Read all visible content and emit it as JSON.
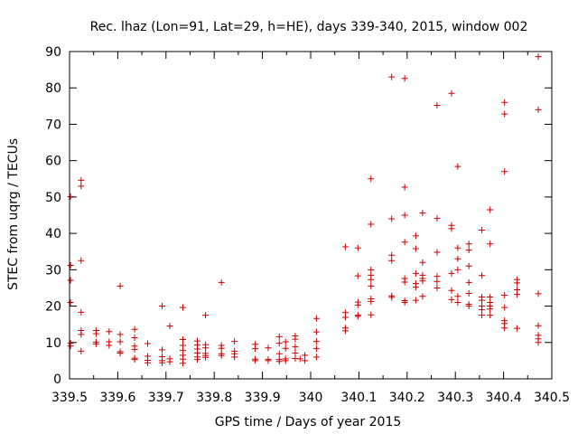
{
  "chart_data": {
    "type": "scatter",
    "title": "Rec. lhaz (Lon=91, Lat=29, h=HE), days 339-340, 2015, window 002",
    "xlabel": "GPS time / Days of year 2015",
    "ylabel": "STEC from uqrg / TECUs",
    "xlim": [
      339.5,
      340.5
    ],
    "ylim": [
      0,
      90
    ],
    "xticks": [
      "339.5",
      "339.6",
      "339.7",
      "339.8",
      "339.9",
      "340",
      "340.1",
      "340.2",
      "340.3",
      "340.4",
      "340.5"
    ],
    "yticks": [
      "0",
      "10",
      "20",
      "30",
      "40",
      "50",
      "60",
      "70",
      "80",
      "90"
    ],
    "marker": "plus",
    "color": "#cc0000",
    "grid": false,
    "legend": "none",
    "points": [
      [
        339.502,
        50.1
      ],
      [
        339.502,
        31.2
      ],
      [
        339.502,
        27.1
      ],
      [
        339.502,
        21.0
      ],
      [
        339.502,
        9.8
      ],
      [
        339.502,
        9.0
      ],
      [
        339.524,
        54.6
      ],
      [
        339.524,
        53.0
      ],
      [
        339.524,
        32.5
      ],
      [
        339.524,
        18.3
      ],
      [
        339.524,
        13.3
      ],
      [
        339.524,
        12.2
      ],
      [
        339.524,
        7.6
      ],
      [
        339.555,
        13.3
      ],
      [
        339.555,
        12.4
      ],
      [
        339.555,
        10.1
      ],
      [
        339.555,
        9.6
      ],
      [
        339.582,
        13.0
      ],
      [
        339.582,
        10.2
      ],
      [
        339.582,
        9.2
      ],
      [
        339.605,
        25.5
      ],
      [
        339.605,
        12.2
      ],
      [
        339.605,
        10.2
      ],
      [
        339.605,
        7.5
      ],
      [
        339.605,
        7.1
      ],
      [
        339.635,
        13.6
      ],
      [
        339.635,
        11.3
      ],
      [
        339.635,
        9.0
      ],
      [
        339.635,
        8.1
      ],
      [
        339.635,
        5.7
      ],
      [
        339.635,
        5.3
      ],
      [
        339.662,
        9.7
      ],
      [
        339.662,
        6.2
      ],
      [
        339.662,
        5.1
      ],
      [
        339.662,
        4.4
      ],
      [
        339.692,
        20.0
      ],
      [
        339.692,
        8.0
      ],
      [
        339.692,
        6.1
      ],
      [
        339.692,
        5.0
      ],
      [
        339.692,
        4.4
      ],
      [
        339.708,
        14.5
      ],
      [
        339.708,
        5.5
      ],
      [
        339.708,
        4.7
      ],
      [
        339.735,
        19.6
      ],
      [
        339.735,
        10.8
      ],
      [
        339.735,
        9.2
      ],
      [
        339.735,
        7.8
      ],
      [
        339.735,
        6.5
      ],
      [
        339.735,
        5.4
      ],
      [
        339.735,
        4.3
      ],
      [
        339.765,
        10.4
      ],
      [
        339.765,
        9.3
      ],
      [
        339.765,
        8.2
      ],
      [
        339.765,
        7.1
      ],
      [
        339.765,
        6.0
      ],
      [
        339.765,
        5.3
      ],
      [
        339.782,
        17.5
      ],
      [
        339.782,
        9.4
      ],
      [
        339.782,
        8.5
      ],
      [
        339.782,
        7.0
      ],
      [
        339.782,
        6.4
      ],
      [
        339.782,
        5.9
      ],
      [
        339.815,
        26.5
      ],
      [
        339.815,
        9.2
      ],
      [
        339.815,
        8.4
      ],
      [
        339.815,
        6.9
      ],
      [
        339.815,
        6.4
      ],
      [
        339.842,
        10.3
      ],
      [
        339.842,
        7.6
      ],
      [
        339.842,
        6.9
      ],
      [
        339.842,
        6.0
      ],
      [
        339.885,
        9.5
      ],
      [
        339.885,
        8.3
      ],
      [
        339.885,
        5.4
      ],
      [
        339.885,
        5.0
      ],
      [
        339.912,
        8.5
      ],
      [
        339.912,
        5.3
      ],
      [
        339.912,
        5.0
      ],
      [
        339.935,
        11.6
      ],
      [
        339.935,
        9.8
      ],
      [
        339.935,
        6.9
      ],
      [
        339.935,
        5.3
      ],
      [
        339.935,
        4.8
      ],
      [
        339.948,
        10.2
      ],
      [
        339.948,
        8.4
      ],
      [
        339.948,
        5.5
      ],
      [
        339.948,
        5.0
      ],
      [
        339.968,
        11.8
      ],
      [
        339.968,
        10.9
      ],
      [
        339.968,
        8.8
      ],
      [
        339.968,
        7.1
      ],
      [
        339.968,
        5.6
      ],
      [
        339.978,
        5.5
      ],
      [
        339.988,
        6.5
      ],
      [
        339.988,
        5.0
      ],
      [
        340.012,
        16.6
      ],
      [
        340.012,
        12.9
      ],
      [
        340.012,
        10.3
      ],
      [
        340.012,
        8.3
      ],
      [
        340.012,
        6.0
      ],
      [
        340.072,
        36.3
      ],
      [
        340.072,
        18.2
      ],
      [
        340.072,
        16.9
      ],
      [
        340.072,
        14.0
      ],
      [
        340.072,
        13.2
      ],
      [
        340.098,
        36.0
      ],
      [
        340.098,
        28.3
      ],
      [
        340.098,
        21.1
      ],
      [
        340.098,
        20.3
      ],
      [
        340.098,
        17.5
      ],
      [
        340.098,
        17.2
      ],
      [
        340.125,
        55.0
      ],
      [
        340.125,
        42.5
      ],
      [
        340.125,
        30.0
      ],
      [
        340.125,
        28.5
      ],
      [
        340.125,
        27.3
      ],
      [
        340.125,
        25.5
      ],
      [
        340.125,
        22.0
      ],
      [
        340.125,
        21.3
      ],
      [
        340.125,
        17.6
      ],
      [
        340.168,
        83.0
      ],
      [
        340.168,
        44.0
      ],
      [
        340.168,
        34.0
      ],
      [
        340.168,
        32.5
      ],
      [
        340.168,
        22.8
      ],
      [
        340.168,
        22.4
      ],
      [
        340.195,
        82.6
      ],
      [
        340.195,
        52.7
      ],
      [
        340.195,
        45.0
      ],
      [
        340.195,
        37.6
      ],
      [
        340.195,
        27.6
      ],
      [
        340.195,
        26.6
      ],
      [
        340.195,
        21.5
      ],
      [
        340.195,
        21.0
      ],
      [
        340.218,
        39.3
      ],
      [
        340.218,
        35.8
      ],
      [
        340.218,
        29.0
      ],
      [
        340.218,
        26.2
      ],
      [
        340.218,
        25.2
      ],
      [
        340.218,
        21.6
      ],
      [
        340.232,
        45.6
      ],
      [
        340.232,
        32.0
      ],
      [
        340.232,
        28.5
      ],
      [
        340.232,
        27.6
      ],
      [
        340.232,
        26.9
      ],
      [
        340.232,
        22.7
      ],
      [
        340.262,
        75.2
      ],
      [
        340.262,
        44.1
      ],
      [
        340.262,
        34.8
      ],
      [
        340.262,
        28.2
      ],
      [
        340.262,
        26.8
      ],
      [
        340.262,
        25.0
      ],
      [
        340.292,
        78.5
      ],
      [
        340.292,
        42.2
      ],
      [
        340.292,
        41.3
      ],
      [
        340.292,
        29.0
      ],
      [
        340.292,
        24.3
      ],
      [
        340.292,
        21.8
      ],
      [
        340.305,
        58.4
      ],
      [
        340.305,
        36.0
      ],
      [
        340.305,
        33.0
      ],
      [
        340.305,
        30.0
      ],
      [
        340.305,
        22.7
      ],
      [
        340.305,
        21.0
      ],
      [
        340.328,
        37.1
      ],
      [
        340.328,
        35.4
      ],
      [
        340.328,
        31.0
      ],
      [
        340.328,
        26.5
      ],
      [
        340.328,
        23.5
      ],
      [
        340.328,
        20.5
      ],
      [
        340.328,
        20.0
      ],
      [
        340.355,
        40.9
      ],
      [
        340.355,
        28.4
      ],
      [
        340.355,
        22.5
      ],
      [
        340.355,
        21.6
      ],
      [
        340.355,
        20.0
      ],
      [
        340.355,
        19.0
      ],
      [
        340.355,
        17.5
      ],
      [
        340.372,
        46.5
      ],
      [
        340.372,
        37.1
      ],
      [
        340.372,
        22.5
      ],
      [
        340.372,
        21.0
      ],
      [
        340.372,
        20.0
      ],
      [
        340.372,
        19.2
      ],
      [
        340.372,
        17.5
      ],
      [
        340.402,
        76.0
      ],
      [
        340.402,
        72.8
      ],
      [
        340.402,
        57.0
      ],
      [
        340.402,
        23.0
      ],
      [
        340.402,
        19.6
      ],
      [
        340.402,
        16.0
      ],
      [
        340.402,
        15.2
      ],
      [
        340.402,
        14.0
      ],
      [
        340.428,
        27.3
      ],
      [
        340.428,
        26.4
      ],
      [
        340.428,
        24.5
      ],
      [
        340.428,
        23.2
      ],
      [
        340.428,
        13.9
      ],
      [
        340.472,
        88.6
      ],
      [
        340.472,
        74.0
      ],
      [
        340.472,
        23.4
      ],
      [
        340.472,
        14.6
      ],
      [
        340.472,
        12.0
      ],
      [
        340.472,
        11.0
      ],
      [
        340.472,
        10.0
      ]
    ]
  }
}
